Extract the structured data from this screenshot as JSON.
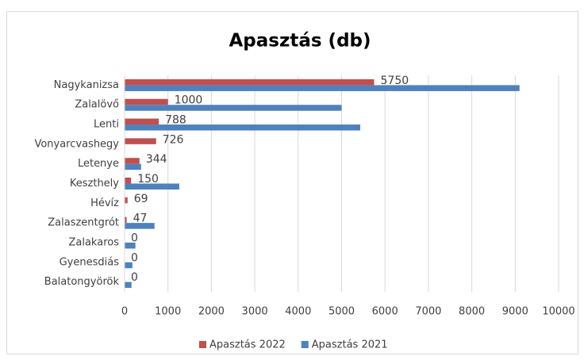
{
  "chart_data": {
    "type": "bar",
    "orientation": "horizontal",
    "title": "Apasztás (db)",
    "categories": [
      "Nagykanizsa",
      "Zalalövő",
      "Lenti",
      "Vonyarcvashegy",
      "Letenye",
      "Keszthely",
      "Hévíz",
      "Zalaszentgrót",
      "Zalakaros",
      "Gyenesdiás",
      "Balatongyörök"
    ],
    "series": [
      {
        "name": "Apasztás 2022",
        "color": "#c0504d",
        "values": [
          5750,
          1000,
          788,
          726,
          344,
          150,
          69,
          47,
          0,
          0,
          0
        ],
        "data_labels": true
      },
      {
        "name": "Apasztás 2021",
        "color": "#4f81bd",
        "values": [
          9100,
          5000,
          5430,
          0,
          380,
          1260,
          0,
          690,
          250,
          180,
          160
        ],
        "data_labels": false
      }
    ],
    "xlim": [
      0,
      10000
    ],
    "xticks": [
      0,
      1000,
      2000,
      3000,
      4000,
      5000,
      6000,
      7000,
      8000,
      9000,
      10000
    ],
    "grid": true,
    "legend": "bottom"
  }
}
